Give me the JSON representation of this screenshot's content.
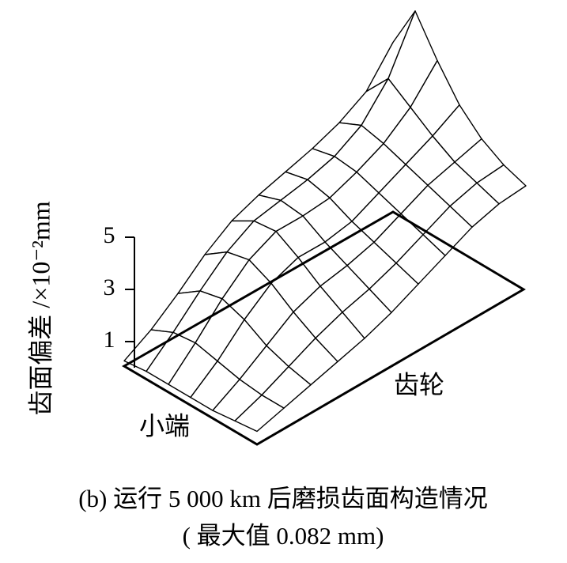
{
  "chart_data": {
    "type": "surface",
    "z_label": "齿面偏差 /×10⁻²mm",
    "x_label": "小端",
    "y_label": "齿轮",
    "caption": [
      "(b) 运行 5 000 km 后磨损齿面构造情况",
      "( 最大值 0.082 mm)"
    ],
    "zlim": [
      0,
      5
    ],
    "zticks": [
      1,
      3,
      5
    ],
    "z": [
      [
        0.2,
        0.8,
        1.6,
        2.5,
        3.2,
        3.6,
        3.9,
        4.2,
        4.6,
        5.2,
        6.5
      ],
      [
        0.3,
        1.2,
        2.2,
        3.1,
        3.7,
        3.9,
        4.1,
        4.4,
        5.0,
        6.2,
        8.2
      ],
      [
        0.3,
        1.3,
        2.4,
        3.3,
        3.8,
        3.8,
        3.9,
        4.3,
        4.8,
        5.6,
        6.8
      ],
      [
        0.3,
        1.1,
        2.1,
        2.9,
        3.3,
        3.3,
        3.5,
        4.0,
        4.5,
        5.0,
        5.6
      ],
      [
        0.3,
        0.9,
        1.6,
        2.3,
        2.7,
        2.9,
        3.2,
        3.7,
        4.2,
        4.5,
        4.8
      ],
      [
        0.4,
        0.8,
        1.3,
        1.8,
        2.2,
        2.5,
        2.9,
        3.4,
        3.9,
        4.2,
        4.3
      ],
      [
        0.5,
        0.8,
        1.1,
        1.4,
        1.7,
        2.1,
        2.6,
        3.1,
        3.6,
        3.9,
        4.0
      ]
    ]
  }
}
